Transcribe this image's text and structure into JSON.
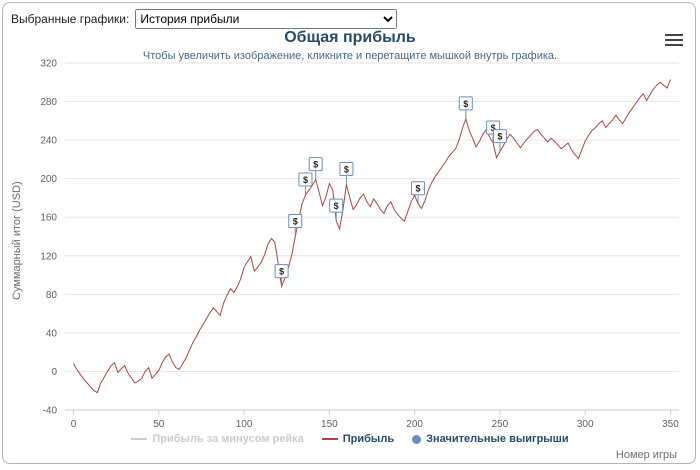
{
  "toolbar": {
    "label": "Выбранные графики:",
    "selected_option": "История прибыли"
  },
  "chart": {
    "title": "Общая прибыль",
    "subtitle": "Чтобы увеличить изображение, кликните и перетащите мышкой внутрь графика."
  },
  "legend": {
    "items": [
      {
        "label": "Прибыль за минусом рейка",
        "symbol": "line",
        "color": "#cccccc",
        "disabled": true
      },
      {
        "label": "Прибыль",
        "symbol": "line",
        "color": "#aa4643",
        "disabled": false
      },
      {
        "label": "Значительные выигрыши",
        "symbol": "circle",
        "color": "#6b8ebf",
        "disabled": false
      }
    ]
  },
  "chart_data": {
    "type": "line",
    "title": "Общая прибыль",
    "subtitle": "Чтобы увеличить изображение, кликните и перетащите мышкой внутрь графика.",
    "xlabel": "Номер игры",
    "ylabel": "Суммарный итог (USD)",
    "xlim": [
      -5,
      355
    ],
    "ylim": [
      -40,
      320
    ],
    "xticks": [
      0,
      50,
      100,
      150,
      200,
      250,
      300,
      350
    ],
    "yticks": [
      -40,
      0,
      40,
      80,
      120,
      160,
      200,
      240,
      280,
      320
    ],
    "grid": "horizontal",
    "legend_position": "bottom",
    "line_color": "#aa4643",
    "flag_color": "#6b8ebf",
    "x_start": 0,
    "x_step": 2,
    "series": [
      {
        "name": "Прибыль",
        "color": "#aa4643",
        "y": [
          8,
          2,
          -3,
          -8,
          -12,
          -16,
          -20,
          -22,
          -12,
          -6,
          0,
          6,
          9,
          -1,
          3,
          6,
          -2,
          -7,
          -12,
          -10,
          -7,
          0,
          4,
          -7,
          -3,
          1,
          9,
          15,
          18,
          10,
          4,
          2,
          8,
          14,
          22,
          30,
          36,
          43,
          49,
          55,
          61,
          66,
          62,
          58,
          71,
          79,
          86,
          82,
          88,
          96,
          108,
          114,
          119,
          104,
          108,
          113,
          121,
          132,
          138,
          134,
          112,
          88,
          97,
          108,
          121,
          140,
          158,
          174,
          183,
          188,
          193,
          199,
          186,
          172,
          181,
          195,
          188,
          156,
          148,
          168,
          194,
          180,
          168,
          173,
          180,
          184,
          176,
          171,
          179,
          174,
          168,
          164,
          172,
          176,
          168,
          163,
          159,
          156,
          166,
          176,
          183,
          174,
          169,
          177,
          188,
          196,
          202,
          207,
          212,
          217,
          223,
          227,
          231,
          240,
          252,
          262,
          250,
          242,
          233,
          239,
          246,
          251,
          243,
          237,
          222,
          228,
          234,
          241,
          246,
          242,
          237,
          232,
          237,
          241,
          245,
          249,
          251,
          246,
          242,
          238,
          242,
          239,
          235,
          231,
          234,
          237,
          230,
          225,
          221,
          230,
          239,
          245,
          250,
          253,
          257,
          260,
          253,
          257,
          261,
          266,
          261,
          257,
          263,
          269,
          274,
          279,
          284,
          288,
          281,
          287,
          293,
          297,
          300,
          297,
          294,
          303
        ]
      },
      {
        "name": "Прибыль за минусом рейка",
        "color": "#cccccc",
        "visible": false,
        "y": []
      }
    ],
    "flags": {
      "label": "$",
      "x": [
        122,
        130,
        136,
        142,
        154,
        160,
        202,
        230,
        246,
        250
      ]
    }
  }
}
